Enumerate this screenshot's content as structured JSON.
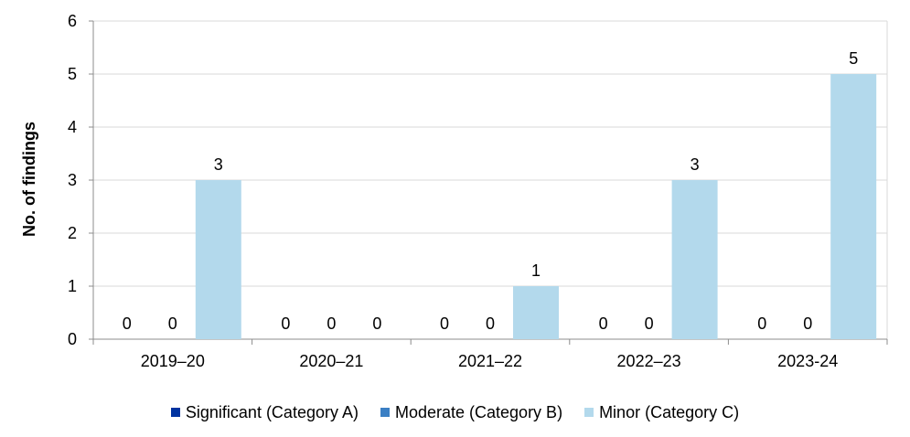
{
  "chart_data": {
    "type": "bar",
    "title": "",
    "xlabel": "",
    "ylabel": "No. of findings",
    "ylim": [
      0,
      6
    ],
    "yticks": [
      0,
      1,
      2,
      3,
      4,
      5,
      6
    ],
    "grid": true,
    "legend_position": "bottom",
    "categories": [
      "2019–20",
      "2020–21",
      "2021–22",
      "2022–23",
      "2023-24"
    ],
    "series": [
      {
        "name": "Significant (Category A)",
        "color": "#0033a0",
        "values": [
          0,
          0,
          0,
          0,
          0
        ]
      },
      {
        "name": "Moderate (Category B)",
        "color": "#3b7fc4",
        "values": [
          0,
          0,
          0,
          0,
          0
        ]
      },
      {
        "name": "Minor (Category C)",
        "color": "#b3d9ec",
        "values": [
          3,
          0,
          1,
          3,
          5
        ]
      }
    ]
  }
}
